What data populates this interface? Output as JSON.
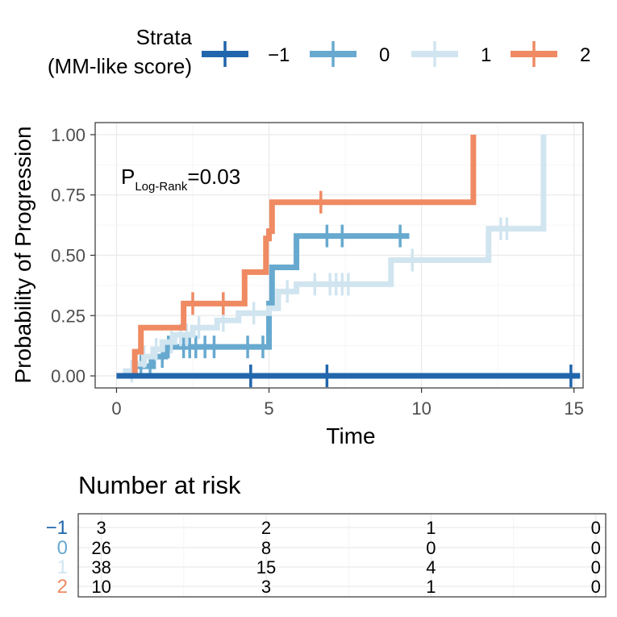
{
  "legend": {
    "title_line1": "Strata",
    "title_line2": "(MM-like score)",
    "position": "top"
  },
  "annotation": {
    "p_main": "P",
    "p_sub": "Log-Rank",
    "p_value": "=0.03"
  },
  "chart_data": [
    {
      "type": "line",
      "subtype": "kaplan-meier-step",
      "title": "",
      "xlabel": "Time",
      "ylabel": "Probability of Progression",
      "xlim": [
        -0.7,
        15.3
      ],
      "ylim": [
        -0.05,
        1.05
      ],
      "xticks": [
        0,
        5,
        10,
        15
      ],
      "xtick_labels": [
        "0",
        "5",
        "10",
        "15"
      ],
      "yticks": [
        0,
        0.25,
        0.5,
        0.75,
        1.0
      ],
      "ytick_labels": [
        "0.00",
        "0.25",
        "0.50",
        "0.75",
        "1.00"
      ],
      "grid": true,
      "series": [
        {
          "name": "−1",
          "color": "#2166ac",
          "steps": [
            [
              0,
              0
            ]
          ],
          "end_time": 15.2,
          "censor": [
            4.4,
            6.9,
            14.9
          ]
        },
        {
          "name": "0",
          "color": "#67a9cf",
          "steps": [
            [
              0,
              0
            ],
            [
              0.6,
              0.04
            ],
            [
              1.2,
              0.08
            ],
            [
              1.6,
              0.12
            ],
            [
              5.0,
              0.3
            ],
            [
              5.1,
              0.45
            ],
            [
              5.9,
              0.58
            ]
          ],
          "end_time": 9.6,
          "censor": [
            0.8,
            1.1,
            1.5,
            1.7,
            2.2,
            2.4,
            2.6,
            2.9,
            3.2,
            4.3,
            4.8,
            6.9,
            7.4,
            9.3
          ]
        },
        {
          "name": "1",
          "color": "#d1e5f0",
          "steps": [
            [
              0,
              0
            ],
            [
              0.3,
              0.02
            ],
            [
              0.6,
              0.05
            ],
            [
              0.9,
              0.08
            ],
            [
              1.2,
              0.11
            ],
            [
              1.5,
              0.14
            ],
            [
              1.9,
              0.17
            ],
            [
              2.5,
              0.2
            ],
            [
              3.3,
              0.23
            ],
            [
              4.0,
              0.26
            ],
            [
              5.0,
              0.28
            ],
            [
              5.3,
              0.35
            ],
            [
              5.9,
              0.38
            ],
            [
              9.0,
              0.48
            ],
            [
              12.2,
              0.61
            ],
            [
              14.0,
              1.0
            ]
          ],
          "end_time": 14.0,
          "censor": [
            0.5,
            0.9,
            1.3,
            1.8,
            2.1,
            2.3,
            2.7,
            3.5,
            4.5,
            5.6,
            6.5,
            7.0,
            7.2,
            7.4,
            7.6,
            9.7,
            12.6,
            12.8
          ]
        },
        {
          "name": "2",
          "color": "#ef8a62",
          "steps": [
            [
              0,
              0
            ],
            [
              0.6,
              0.1
            ],
            [
              0.8,
              0.2
            ],
            [
              2.2,
              0.3
            ],
            [
              4.2,
              0.43
            ],
            [
              4.9,
              0.57
            ],
            [
              5.0,
              0.6
            ],
            [
              5.1,
              0.72
            ],
            [
              11.7,
              1.0
            ]
          ],
          "end_time": 11.7,
          "censor": [
            2.5,
            3.5,
            6.7
          ]
        }
      ]
    },
    {
      "type": "table",
      "title": "Number at risk",
      "times": [
        0,
        5,
        10,
        15
      ],
      "rows": [
        {
          "label": "−1",
          "color": "#2166ac",
          "values": [
            "3",
            "2",
            "1",
            "0"
          ]
        },
        {
          "label": "0",
          "color": "#67a9cf",
          "values": [
            "26",
            "8",
            "0",
            "0"
          ]
        },
        {
          "label": "1",
          "color": "#d1e5f0",
          "values": [
            "38",
            "15",
            "4",
            "0"
          ]
        },
        {
          "label": "2",
          "color": "#ef8a62",
          "values": [
            "10",
            "3",
            "1",
            "0"
          ]
        }
      ]
    }
  ]
}
